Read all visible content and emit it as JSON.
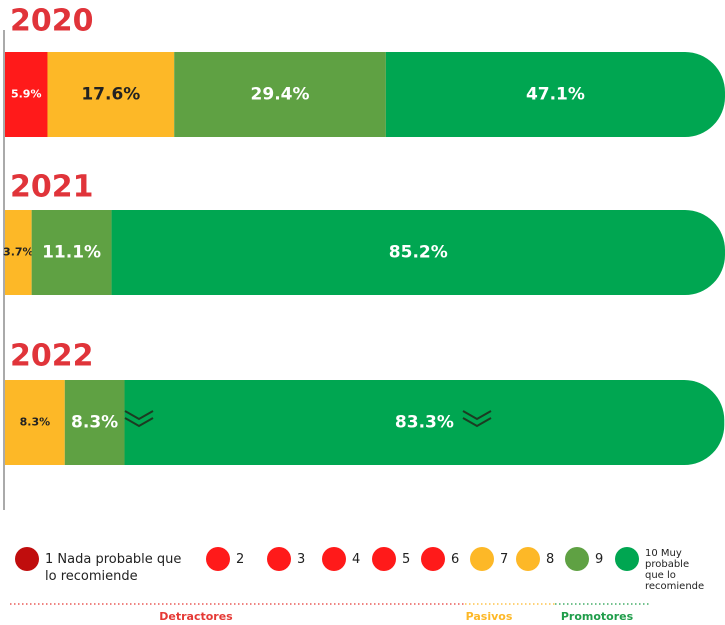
{
  "chart_data": {
    "type": "stacked-bar",
    "orientation": "horizontal",
    "categories": [
      "2020",
      "2021",
      "2022"
    ],
    "series": [
      {
        "name": "1 Nada probable que lo recomiende",
        "color": "#c00d0d",
        "values": [
          null,
          null,
          null
        ],
        "value_labels": [
          null,
          null,
          null
        ]
      },
      {
        "name": "2",
        "color": "#ff1a1a",
        "values": [
          null,
          null,
          null
        ],
        "value_labels": [
          null,
          null,
          null
        ]
      },
      {
        "name": "3",
        "color": "#ff1a1a",
        "values": [
          null,
          null,
          null
        ],
        "value_labels": [
          null,
          null,
          null
        ]
      },
      {
        "name": "4",
        "color": "#ff1a1a",
        "values": [
          null,
          null,
          null
        ],
        "value_labels": [
          null,
          null,
          null
        ]
      },
      {
        "name": "5",
        "color": "#ff1a1a",
        "values": [
          null,
          null,
          null
        ],
        "value_labels": [
          null,
          null,
          null
        ]
      },
      {
        "name": "6",
        "color": "#ff1a1a",
        "values": [
          5.9,
          null,
          null
        ],
        "value_labels": [
          "5.9%",
          null,
          null
        ]
      },
      {
        "name": "7",
        "color": "#fdb827",
        "values": [
          null,
          null,
          null
        ],
        "value_labels": [
          null,
          null,
          null
        ]
      },
      {
        "name": "8",
        "color": "#fdb827",
        "values": [
          17.6,
          3.7,
          8.3
        ],
        "value_labels": [
          "17.6%",
          "3.7%",
          "8.3%"
        ]
      },
      {
        "name": "9",
        "color": "#5fa143",
        "values": [
          29.4,
          11.1,
          8.3
        ],
        "value_labels": [
          "29.4%",
          "11.1%",
          "8.3%"
        ]
      },
      {
        "name": "10 Muy probable que lo recomiende",
        "color": "#00a651",
        "values": [
          47.1,
          85.2,
          83.3
        ],
        "value_labels": [
          "47.1%",
          "85.2%",
          "83.3%"
        ]
      }
    ],
    "legend_groups": [
      {
        "name": "Detractores",
        "color": "#e53935"
      },
      {
        "name": "Pasivos",
        "color": "#fdb827"
      },
      {
        "name": "Promotores",
        "color": "#1f9d4a"
      }
    ]
  }
}
